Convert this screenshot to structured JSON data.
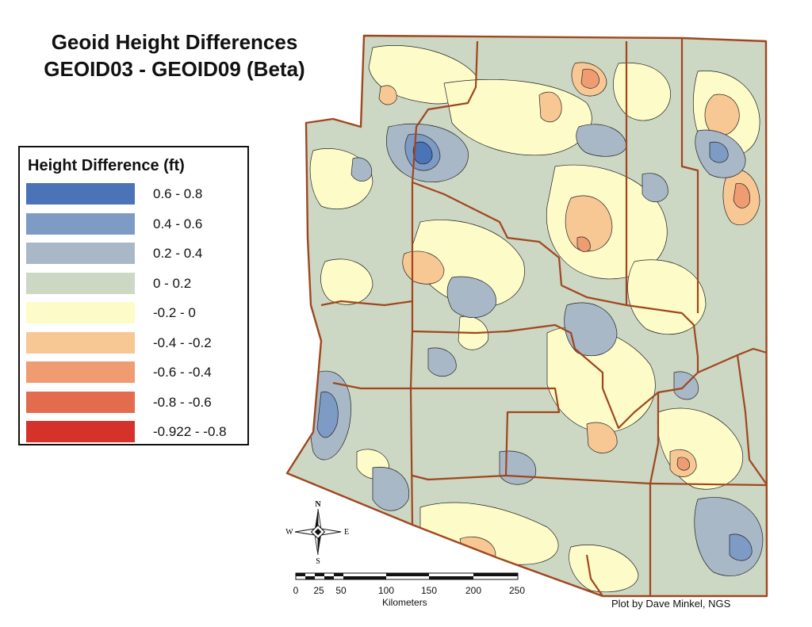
{
  "title_line1": "Geoid Height Differences",
  "title_line2": "GEOID03 - GEOID09 (Beta)",
  "legend": {
    "title": "Height Difference (ft)",
    "items": [
      {
        "label": "0.6 - 0.8",
        "color": "#4a73b8"
      },
      {
        "label": "0.4 - 0.6",
        "color": "#7d9bc4"
      },
      {
        "label": "0.2 - 0.4",
        "color": "#a8b8c6"
      },
      {
        "label": "0 - 0.2",
        "color": "#ccd7c4"
      },
      {
        "label": "-0.2 - 0",
        "color": "#fdfbc8"
      },
      {
        "label": "-0.4 - -0.2",
        "color": "#f8c894"
      },
      {
        "label": "-0.6 - -0.4",
        "color": "#ef9c72"
      },
      {
        "label": "-0.8 - -0.6",
        "color": "#e36c4f"
      },
      {
        "label": "-0.922 - -0.8",
        "color": "#d6322c"
      }
    ]
  },
  "compass": {
    "n": "N",
    "s": "S",
    "e": "E",
    "w": "W"
  },
  "scale": {
    "ticks": [
      "0",
      "25",
      "50",
      "100",
      "150",
      "200",
      "250"
    ],
    "unit": "Kilometers"
  },
  "credit": "Plot by Dave Minkel, NGS",
  "colors": {
    "county_boundary": "#a0461e",
    "contour": "#222222"
  }
}
